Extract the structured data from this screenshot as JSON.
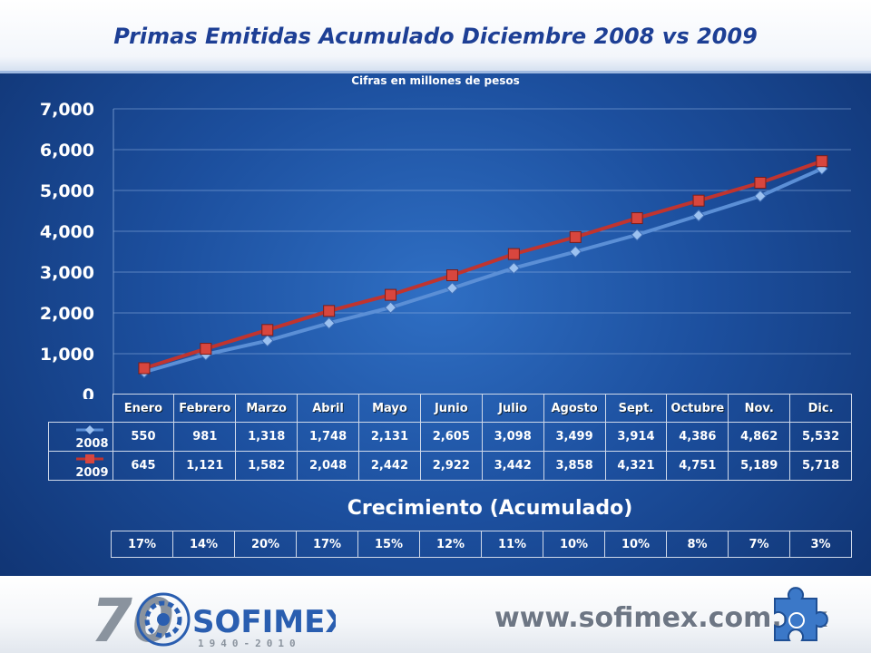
{
  "title": "Primas Emitidas Acumulado Diciembre 2008 vs 2009",
  "colors": {
    "series_2008": "#5b8fd6",
    "series_2009": "#c0342f",
    "grid": "#8fb0e0"
  },
  "chart_data": {
    "type": "line",
    "title": "Primas Emitidas Acumulado Diciembre 2008 vs 2009",
    "subtitle": "Cifras en millones de pesos",
    "categories": [
      "Enero",
      "Febrero",
      "Marzo",
      "Abril",
      "Mayo",
      "Junio",
      "Julio",
      "Agosto",
      "Sept.",
      "Octubre",
      "Nov.",
      "Dic."
    ],
    "series": [
      {
        "name": "2008",
        "values": [
          550,
          981,
          1318,
          1748,
          2131,
          2605,
          3098,
          3499,
          3914,
          4386,
          4862,
          5532
        ],
        "labels": [
          "550",
          "981",
          "1,318",
          "1,748",
          "2,131",
          "2,605",
          "3,098",
          "3,499",
          "3,914",
          "4,386",
          "4,862",
          "5,532"
        ]
      },
      {
        "name": "2009",
        "values": [
          645,
          1121,
          1582,
          2048,
          2442,
          2922,
          3442,
          3858,
          4321,
          4751,
          5189,
          5718
        ],
        "labels": [
          "645",
          "1,121",
          "1,582",
          "2,048",
          "2,442",
          "2,922",
          "3,442",
          "3,858",
          "4,321",
          "4,751",
          "5,189",
          "5,718"
        ]
      }
    ],
    "ylim": [
      0,
      7000
    ],
    "yticks": [
      0,
      1000,
      2000,
      3000,
      4000,
      5000,
      6000,
      7000
    ],
    "ytick_labels": [
      "0",
      "1,000",
      "2,000",
      "3,000",
      "4,000",
      "5,000",
      "6,000",
      "7,000"
    ],
    "grid": true,
    "legend": "data-table"
  },
  "growth": {
    "title": "Crecimiento (Acumulado)",
    "values": [
      "17%",
      "14%",
      "20%",
      "17%",
      "15%",
      "12%",
      "11%",
      "10%",
      "10%",
      "8%",
      "7%",
      "3%"
    ]
  },
  "footer": {
    "logo_text": "SOFIMEX",
    "logo_years": "1940-2010",
    "logo_number": "70",
    "website": "www.sofimex.com.mx"
  }
}
